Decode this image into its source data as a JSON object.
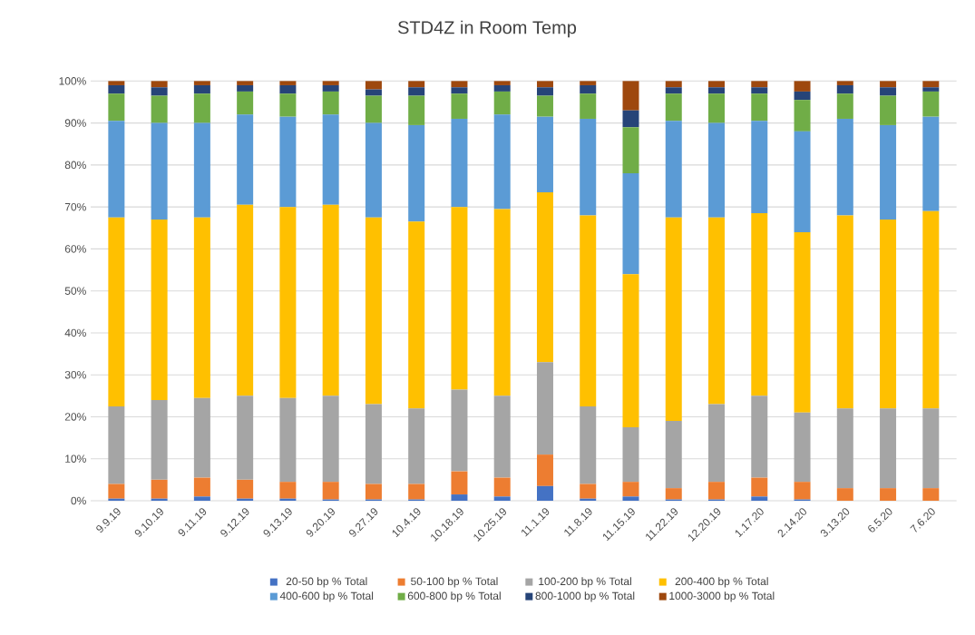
{
  "chart_data": {
    "type": "bar",
    "title": "STD4Z in Room Temp",
    "stacked": true,
    "grid": "y",
    "legend": "bottom",
    "categories": [
      "9.9.19",
      "9.10.19",
      "9.11.19",
      "9.12.19",
      "9.13.19",
      "9.20.19",
      "9.27.19",
      "10.4.19",
      "10.18.19",
      "10.25.19",
      "11.1.19",
      "11.8.19",
      "11.15.19",
      "11.22.19",
      "12.20.19",
      "1.17.20",
      "2.14.20",
      "3.13.20",
      "6.5.20",
      "7.6.20"
    ],
    "ylim": [
      0,
      100
    ],
    "yticks": [
      {
        "value": 0,
        "label": "0%"
      },
      {
        "value": 10,
        "label": "10%"
      },
      {
        "value": 20,
        "label": "20%"
      },
      {
        "value": 30,
        "label": "30%"
      },
      {
        "value": 40,
        "label": "40%"
      },
      {
        "value": 50,
        "label": "50%"
      },
      {
        "value": 60,
        "label": "60%"
      },
      {
        "value": 70,
        "label": "70%"
      },
      {
        "value": 80,
        "label": "80%"
      },
      {
        "value": 90,
        "label": "90%"
      },
      {
        "value": 100,
        "label": "100%"
      }
    ],
    "series": [
      {
        "name": "20-50 bp % Total",
        "color": "#4472c4",
        "values": [
          0.5,
          0.5,
          1,
          0.5,
          0.5,
          0.3,
          0.3,
          0.3,
          1.5,
          1,
          3.5,
          0.5,
          1,
          0.3,
          0.3,
          1,
          0.3,
          0,
          0,
          0
        ]
      },
      {
        "name": "50-100 bp % Total",
        "color": "#ed7d31",
        "values": [
          3.5,
          4.5,
          4.5,
          4.5,
          4,
          4.2,
          3.7,
          3.7,
          5.5,
          4.5,
          7.5,
          3.5,
          3.5,
          2.7,
          4.2,
          4.5,
          4.2,
          3,
          3,
          3
        ]
      },
      {
        "name": "100-200 bp % Total",
        "color": "#a5a5a5",
        "values": [
          18.5,
          19,
          19,
          20,
          20,
          20.5,
          19,
          18,
          19.5,
          19.5,
          22,
          18.5,
          13,
          16,
          18.5,
          19.5,
          16.5,
          19,
          19,
          19
        ]
      },
      {
        "name": "200-400 bp % Total",
        "color": "#ffc000",
        "values": [
          45,
          43,
          43,
          45.5,
          45.5,
          45.5,
          44.5,
          44.5,
          43.5,
          44.5,
          40.5,
          45.5,
          36.5,
          48.5,
          44.5,
          43.5,
          43,
          46,
          45,
          47
        ]
      },
      {
        "name": "400-600 bp % Total",
        "color": "#5b9bd5",
        "values": [
          23,
          23,
          22.5,
          21.5,
          21.5,
          21.5,
          22.5,
          23,
          21,
          22.5,
          18,
          23,
          24,
          23,
          22.5,
          22,
          24,
          23,
          22.5,
          22.5
        ]
      },
      {
        "name": "600-800 bp % Total",
        "color": "#70ad47",
        "values": [
          6.5,
          6.5,
          7,
          5.5,
          5.5,
          5.5,
          6.5,
          7,
          6,
          5.5,
          5,
          6,
          11,
          6.5,
          7,
          6.5,
          7.5,
          6,
          7,
          6
        ]
      },
      {
        "name": "800-1000 bp % Total",
        "color": "#264478",
        "values": [
          2,
          2,
          2,
          1.5,
          2,
          1.5,
          1.5,
          2,
          1.5,
          1.5,
          2,
          2,
          4,
          1.5,
          1.5,
          1.5,
          2,
          2,
          2,
          1
        ]
      },
      {
        "name": "1000-3000 bp % Total",
        "color": "#9e480e",
        "values": [
          1,
          1.5,
          1,
          1,
          1,
          1,
          2,
          1.5,
          1.5,
          1,
          1.5,
          1,
          7,
          1.5,
          1.5,
          1.5,
          2.5,
          1,
          1.5,
          1.5
        ]
      }
    ]
  }
}
